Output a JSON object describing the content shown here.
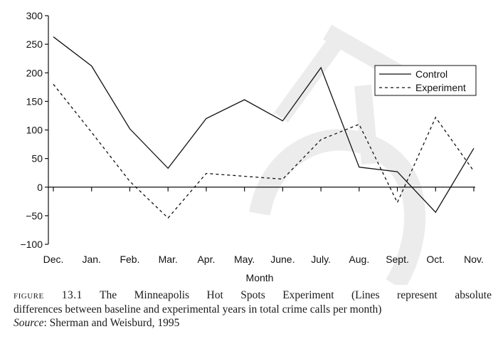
{
  "chart_data": {
    "type": "line",
    "categories": [
      "Dec.",
      "Jan.",
      "Feb.",
      "Mar.",
      "Apr.",
      "May.",
      "June.",
      "July.",
      "Aug.",
      "Sept.",
      "Oct.",
      "Nov."
    ],
    "xlabel": "Month",
    "ylabel": "",
    "ylim": [
      -100,
      300
    ],
    "yticks": [
      -100,
      -50,
      0,
      50,
      100,
      150,
      200,
      250,
      300
    ],
    "ytick_labels": [
      "−100",
      "−50",
      "0",
      "50",
      "100",
      "150",
      "200",
      "250",
      "300"
    ],
    "grid": false,
    "legend_position": "top-right",
    "series": [
      {
        "name": "Control",
        "style": "solid",
        "values": [
          263,
          212,
          102,
          33,
          120,
          153,
          116,
          209,
          35,
          27,
          -44,
          68
        ]
      },
      {
        "name": "Experiment",
        "style": "dashed",
        "values": [
          180,
          96,
          10,
          -54,
          24,
          19,
          14,
          83,
          110,
          -27,
          122,
          28
        ]
      }
    ]
  },
  "caption": {
    "figure_label": "figure 13.1",
    "line1": "The Minneapolis Hot Spots Experiment (Lines represent absolute",
    "line2": "differences between baseline and experimental years in total crime calls per month)",
    "source_label": "Source",
    "source_text": ": Sherman and Weisburd, 1995"
  },
  "colors": {
    "line": "#111111",
    "watermark": "#ececec"
  }
}
